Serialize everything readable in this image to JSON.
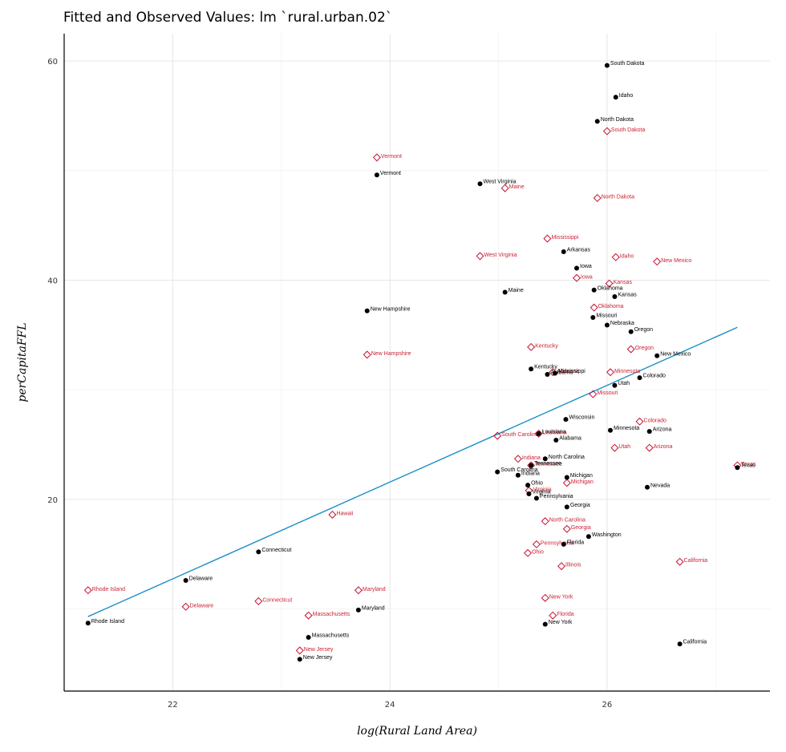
{
  "title": "Fitted and Observed Values: lm `rural.urban.02`",
  "colors": {
    "observed": "#000000",
    "fitted": "#c8102e",
    "fit_line": "#1a8fc9",
    "grid": "#e6e6e6",
    "axis": "#000000"
  },
  "chart_data": {
    "type": "scatter",
    "title": "Fitted and Observed Values: lm `rural.urban.02`",
    "xlabel": "log(Rural Land Area)",
    "ylabel": "perCapitaFFL",
    "xlim": [
      21.0,
      27.5
    ],
    "ylim": [
      2.5,
      62.5
    ],
    "x_ticks": [
      22,
      24,
      26
    ],
    "y_ticks": [
      20,
      40,
      60
    ],
    "grid": true,
    "legend": "none",
    "regression_line": {
      "x": [
        21.22,
        27.2
      ],
      "y": [
        9.3,
        35.7
      ]
    },
    "series": [
      {
        "name": "observed",
        "marker": "filled-circle",
        "points": [
          {
            "state": "South Dakota",
            "x": 26.0,
            "y": 59.6
          },
          {
            "state": "Idaho",
            "x": 26.08,
            "y": 56.7
          },
          {
            "state": "North Dakota",
            "x": 25.91,
            "y": 54.5
          },
          {
            "state": "Vermont",
            "x": 23.88,
            "y": 49.6
          },
          {
            "state": "West Virginia",
            "x": 24.83,
            "y": 48.8
          },
          {
            "state": "Arkansas",
            "x": 25.6,
            "y": 42.6
          },
          {
            "state": "Iowa",
            "x": 25.72,
            "y": 41.1
          },
          {
            "state": "Maine",
            "x": 25.06,
            "y": 38.9
          },
          {
            "state": "Oklahoma",
            "x": 25.88,
            "y": 39.1
          },
          {
            "state": "Kansas",
            "x": 26.07,
            "y": 38.5
          },
          {
            "state": "New Hampshire",
            "x": 23.79,
            "y": 37.2
          },
          {
            "state": "Missouri",
            "x": 25.87,
            "y": 36.6
          },
          {
            "state": "Nebraska",
            "x": 26.0,
            "y": 35.9
          },
          {
            "state": "Oregon",
            "x": 26.22,
            "y": 35.3
          },
          {
            "state": "New Mexico",
            "x": 26.46,
            "y": 33.1
          },
          {
            "state": "Kentucky",
            "x": 25.3,
            "y": 31.9
          },
          {
            "state": "Alabama",
            "x": 25.45,
            "y": 31.4
          },
          {
            "state": "Mississippi",
            "x": 25.52,
            "y": 31.5
          },
          {
            "state": "Colorado",
            "x": 26.3,
            "y": 31.1
          },
          {
            "state": "Utah",
            "x": 26.07,
            "y": 30.4
          },
          {
            "state": "Wisconsin",
            "x": 25.62,
            "y": 27.3
          },
          {
            "state": "Minnesota",
            "x": 26.03,
            "y": 26.3
          },
          {
            "state": "Arizona",
            "x": 26.39,
            "y": 26.2
          },
          {
            "state": "Louisiana",
            "x": 25.37,
            "y": 26.0
          },
          {
            "state": "Alabama",
            "x": 25.53,
            "y": 25.4
          },
          {
            "state": "North Carolina",
            "x": 25.43,
            "y": 23.7
          },
          {
            "state": "Tennessee",
            "x": 25.3,
            "y": 23.1
          },
          {
            "state": "South Carolina",
            "x": 24.99,
            "y": 22.5
          },
          {
            "state": "Indiana",
            "x": 25.18,
            "y": 22.2
          },
          {
            "state": "Michigan",
            "x": 25.63,
            "y": 22.0
          },
          {
            "state": "Ohio",
            "x": 25.27,
            "y": 21.3
          },
          {
            "state": "Nevada",
            "x": 26.37,
            "y": 21.1
          },
          {
            "state": "Virginia",
            "x": 25.28,
            "y": 20.5
          },
          {
            "state": "Pennsylvania",
            "x": 25.35,
            "y": 20.1
          },
          {
            "state": "Georgia",
            "x": 25.63,
            "y": 19.3
          },
          {
            "state": "Washington",
            "x": 25.83,
            "y": 16.6
          },
          {
            "state": "Florida",
            "x": 25.6,
            "y": 15.9
          },
          {
            "state": "Connecticut",
            "x": 22.79,
            "y": 15.2
          },
          {
            "state": "Delaware",
            "x": 22.12,
            "y": 12.6
          },
          {
            "state": "Maryland",
            "x": 23.71,
            "y": 9.9
          },
          {
            "state": "Rhode Island",
            "x": 21.22,
            "y": 8.7
          },
          {
            "state": "Massachusetts",
            "x": 23.25,
            "y": 7.4
          },
          {
            "state": "New York",
            "x": 25.43,
            "y": 8.6
          },
          {
            "state": "California",
            "x": 26.67,
            "y": 6.8
          },
          {
            "state": "New Jersey",
            "x": 23.17,
            "y": 5.4
          },
          {
            "state": "Texas",
            "x": 27.2,
            "y": 22.9
          }
        ]
      },
      {
        "name": "fitted",
        "marker": "open-diamond",
        "points": [
          {
            "state": "South Dakota",
            "x": 26.0,
            "y": 53.6
          },
          {
            "state": "Vermont",
            "x": 23.88,
            "y": 51.2
          },
          {
            "state": "Maine",
            "x": 25.06,
            "y": 48.4
          },
          {
            "state": "North Dakota",
            "x": 25.91,
            "y": 47.5
          },
          {
            "state": "Mississippi",
            "x": 25.45,
            "y": 43.8
          },
          {
            "state": "West Virginia",
            "x": 24.83,
            "y": 42.2
          },
          {
            "state": "Idaho",
            "x": 26.08,
            "y": 42.1
          },
          {
            "state": "New Mexico",
            "x": 26.46,
            "y": 41.7
          },
          {
            "state": "Iowa",
            "x": 25.72,
            "y": 40.2
          },
          {
            "state": "Kansas",
            "x": 26.02,
            "y": 39.7
          },
          {
            "state": "Oklahoma",
            "x": 25.88,
            "y": 37.5
          },
          {
            "state": "New Hampshire",
            "x": 23.79,
            "y": 33.2
          },
          {
            "state": "Kentucky",
            "x": 25.3,
            "y": 33.9
          },
          {
            "state": "Oregon",
            "x": 26.22,
            "y": 33.7
          },
          {
            "state": "Alabama",
            "x": 25.5,
            "y": 31.6
          },
          {
            "state": "Minnesota",
            "x": 26.03,
            "y": 31.6
          },
          {
            "state": "Missouri",
            "x": 25.87,
            "y": 29.6
          },
          {
            "state": "Colorado",
            "x": 26.3,
            "y": 27.1
          },
          {
            "state": "South Carolina",
            "x": 24.99,
            "y": 25.8
          },
          {
            "state": "Louisiana",
            "x": 25.37,
            "y": 26.0
          },
          {
            "state": "Utah",
            "x": 26.07,
            "y": 24.7
          },
          {
            "state": "Arizona",
            "x": 26.39,
            "y": 24.7
          },
          {
            "state": "Indiana",
            "x": 25.18,
            "y": 23.7
          },
          {
            "state": "Tennessee",
            "x": 25.3,
            "y": 23.1
          },
          {
            "state": "Michigan",
            "x": 25.63,
            "y": 21.5
          },
          {
            "state": "Virginia",
            "x": 25.28,
            "y": 20.8
          },
          {
            "state": "Texas",
            "x": 27.2,
            "y": 23.1
          },
          {
            "state": "Hawaii",
            "x": 23.47,
            "y": 18.6
          },
          {
            "state": "North Carolina",
            "x": 25.43,
            "y": 18.0
          },
          {
            "state": "Georgia",
            "x": 25.63,
            "y": 17.3
          },
          {
            "state": "Pennsylvania",
            "x": 25.35,
            "y": 15.9
          },
          {
            "state": "Ohio",
            "x": 25.27,
            "y": 15.1
          },
          {
            "state": "Illinois",
            "x": 25.58,
            "y": 13.9
          },
          {
            "state": "California",
            "x": 26.67,
            "y": 14.3
          },
          {
            "state": "Rhode Island",
            "x": 21.22,
            "y": 11.7
          },
          {
            "state": "Maryland",
            "x": 23.71,
            "y": 11.7
          },
          {
            "state": "Connecticut",
            "x": 22.79,
            "y": 10.7
          },
          {
            "state": "Delaware",
            "x": 22.12,
            "y": 10.2
          },
          {
            "state": "New York",
            "x": 25.43,
            "y": 11.0
          },
          {
            "state": "Massachusetts",
            "x": 23.25,
            "y": 9.4
          },
          {
            "state": "Florida",
            "x": 25.5,
            "y": 9.4
          },
          {
            "state": "New Jersey",
            "x": 23.17,
            "y": 6.2
          }
        ]
      }
    ]
  }
}
